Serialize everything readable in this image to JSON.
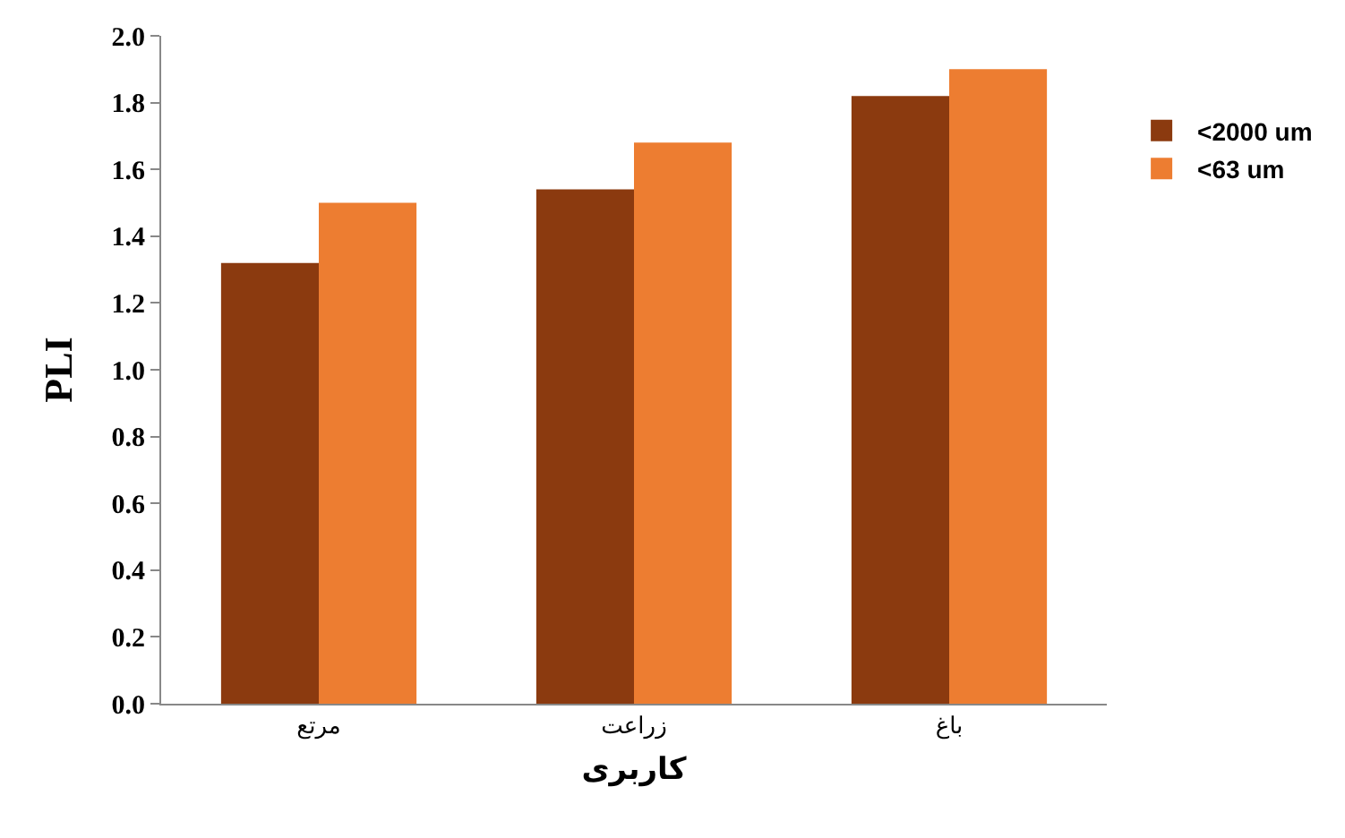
{
  "chart_data": {
    "type": "bar",
    "xlabel": "کاربری",
    "ylabel": "PLI",
    "categories": [
      "مرتع",
      "زراعت",
      "باغ"
    ],
    "series": [
      {
        "name": "<2000 um",
        "color": "#8b3a0f",
        "values": [
          1.32,
          1.54,
          1.82
        ]
      },
      {
        "name": "<63 um",
        "color": "#ed7d31",
        "values": [
          1.5,
          1.68,
          1.9
        ]
      }
    ],
    "ylim": [
      0,
      2.0
    ],
    "yticks": [
      {
        "value": 0,
        "label": "0.0"
      },
      {
        "value": 0.2,
        "label": "0.2"
      },
      {
        "value": 0.4,
        "label": "0.4"
      },
      {
        "value": 0.6,
        "label": "0.6"
      },
      {
        "value": 0.8,
        "label": "0.8"
      },
      {
        "value": 1.0,
        "label": "1.0"
      },
      {
        "value": 1.2,
        "label": "1.2"
      },
      {
        "value": 1.4,
        "label": "1.4"
      },
      {
        "value": 1.6,
        "label": "1.6"
      },
      {
        "value": 1.8,
        "label": "1.8"
      },
      {
        "value": 2.0,
        "label": "2.0"
      }
    ],
    "legend": "right"
  }
}
